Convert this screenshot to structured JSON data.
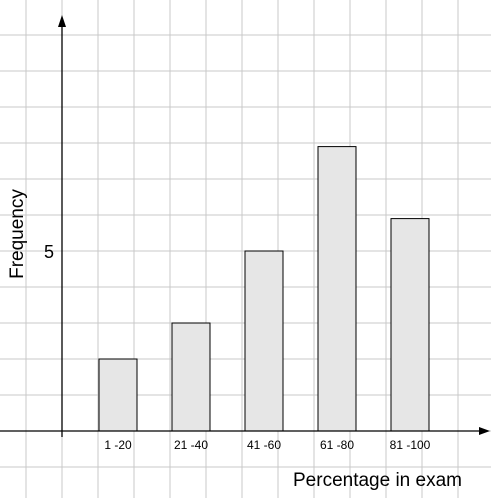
{
  "chart_data": {
    "type": "bar",
    "categories": [
      "1 -20",
      "21 -40",
      "41 -60",
      "61 -80",
      "81 -100"
    ],
    "values": [
      2,
      3,
      5,
      7.9,
      5.9
    ],
    "xlabel": "Percentage in exam",
    "ylabel": "Frequency",
    "yticks": [
      "5"
    ],
    "ylim": [
      0,
      11.3
    ],
    "grid": true,
    "colors": {
      "bar_fill": "#e6e6e6",
      "bar_stroke": "#000000",
      "grid": "#c8c8c8",
      "axis": "#000000"
    }
  }
}
